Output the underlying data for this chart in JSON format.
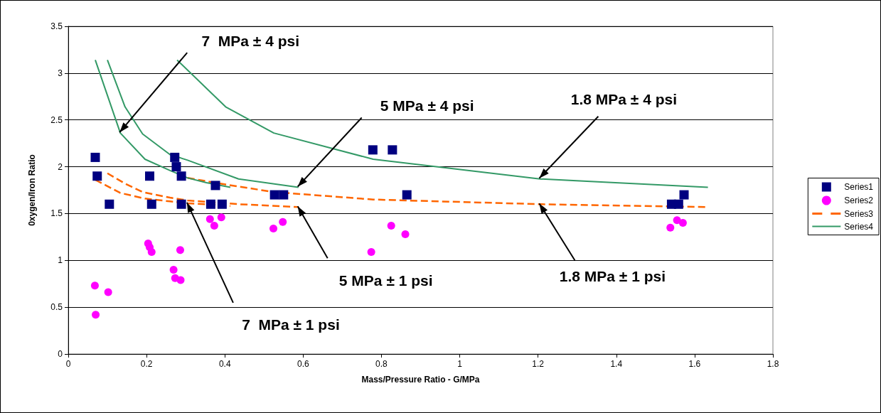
{
  "chart_data": {
    "type": "scatter",
    "xlabel": "Mass/Pressure Ratio - G/MPa",
    "ylabel": "0xygen/Iron Ratio",
    "xlim": [
      0,
      1.8
    ],
    "xticks": [
      0,
      0.2,
      0.4,
      0.6,
      0.8,
      1,
      1.2,
      1.4,
      1.6,
      1.8
    ],
    "ylim": [
      0,
      3.5
    ],
    "yticks": [
      0,
      0.5,
      1,
      1.5,
      2,
      2.5,
      3,
      3.5
    ],
    "grid": "y",
    "legend": "right",
    "series": [
      {
        "name": "Series1",
        "marker": "square",
        "color": "#000080",
        "x": [
          0.069,
          0.074,
          0.105,
          0.208,
          0.213,
          0.272,
          0.276,
          0.289,
          0.289,
          0.376,
          0.364,
          0.393,
          0.527,
          0.55,
          0.778,
          0.828,
          0.865,
          1.541,
          1.559,
          1.573
        ],
        "values": [
          2.1,
          1.9,
          1.6,
          1.9,
          1.6,
          2.1,
          2.0,
          1.9,
          1.6,
          1.8,
          1.6,
          1.6,
          1.7,
          1.7,
          2.18,
          2.18,
          1.7,
          1.6,
          1.6,
          1.7
        ]
      },
      {
        "name": "Series2",
        "marker": "circle",
        "color": "#ff00ff",
        "x": [
          0.068,
          0.102,
          0.07,
          0.204,
          0.208,
          0.213,
          0.286,
          0.269,
          0.273,
          0.287,
          0.362,
          0.373,
          0.391,
          0.524,
          0.548,
          0.774,
          0.825,
          0.861,
          1.538,
          1.555,
          1.57
        ],
        "values": [
          0.73,
          0.66,
          0.42,
          1.18,
          1.14,
          1.09,
          1.11,
          0.9,
          0.81,
          0.79,
          1.44,
          1.37,
          1.46,
          1.34,
          1.41,
          1.09,
          1.37,
          1.28,
          1.35,
          1.43,
          1.4
        ]
      },
      {
        "name": "Series3",
        "type": "line",
        "marker": "none",
        "line_style": "dashed",
        "color": "#ff6600",
        "x": [
          0.069,
          0.133,
          0.196,
          0.26,
          0.305,
          0.353,
          0.414,
          null,
          0.1,
          0.145,
          0.19,
          0.26,
          0.305,
          0.435,
          0.588,
          null,
          0.278,
          0.402,
          0.525,
          0.779,
          1.205,
          1.634
        ],
        "values": [
          1.86,
          1.72,
          1.66,
          1.63,
          1.61,
          1.6,
          1.58,
          null,
          1.93,
          1.82,
          1.73,
          1.67,
          1.64,
          1.6,
          1.57,
          null,
          1.9,
          1.81,
          1.73,
          1.65,
          1.6,
          1.57
        ]
      },
      {
        "name": "Series4",
        "type": "line",
        "marker": "none",
        "line_style": "solid",
        "color": "#339966",
        "x": [
          0.069,
          0.133,
          0.196,
          0.26,
          0.305,
          0.353,
          0.414,
          null,
          0.1,
          0.145,
          0.19,
          0.26,
          0.305,
          0.435,
          0.588,
          null,
          0.278,
          0.402,
          0.525,
          0.779,
          1.205,
          1.634
        ],
        "values": [
          3.14,
          2.36,
          2.08,
          1.96,
          1.88,
          1.83,
          1.78,
          null,
          3.14,
          2.64,
          2.35,
          2.13,
          2.07,
          1.87,
          1.78,
          null,
          3.14,
          2.64,
          2.36,
          2.08,
          1.87,
          1.78
        ]
      }
    ],
    "annotations": [
      {
        "text": "7  MPa ± 4 psi",
        "x": 0.133,
        "y": 2.36
      },
      {
        "text": "5 MPa ± 4 psi",
        "x": 0.588,
        "y": 1.78
      },
      {
        "text": "1.8 MPa ± 4 psi",
        "x": 1.205,
        "y": 1.87
      },
      {
        "text": "5 MPa ± 1 psi",
        "x": 0.588,
        "y": 1.57
      },
      {
        "text": "1.8 MPa ± 1 psi",
        "x": 1.205,
        "y": 1.6
      },
      {
        "text": "7  MPa ± 1 psi",
        "x": 0.305,
        "y": 1.61
      }
    ]
  }
}
